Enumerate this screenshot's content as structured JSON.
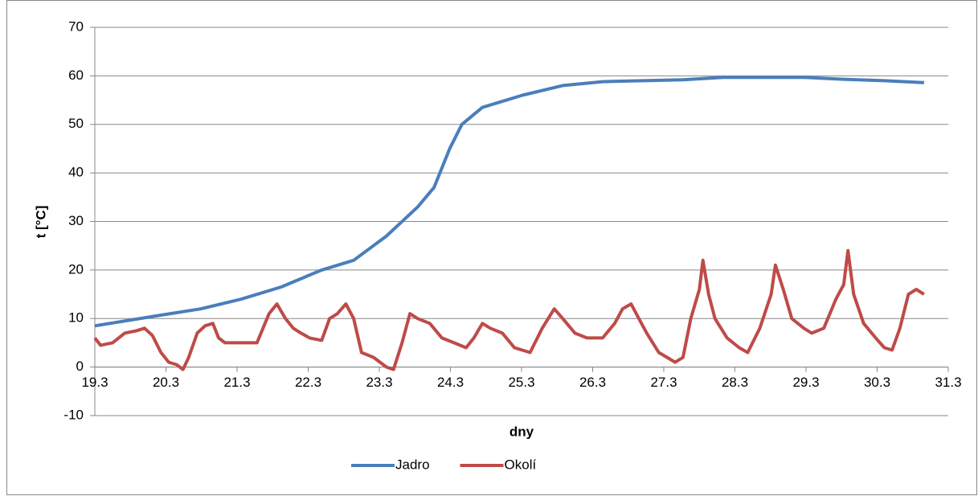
{
  "chart_data": {
    "type": "line",
    "x_label": "dny",
    "y_label": "t [°C]",
    "xlim": [
      19,
      31
    ],
    "xticks": [
      {
        "value": 19,
        "label": "19.3"
      },
      {
        "value": 20,
        "label": "20.3"
      },
      {
        "value": 21,
        "label": "21.3"
      },
      {
        "value": 22,
        "label": "22.3"
      },
      {
        "value": 23,
        "label": "23.3"
      },
      {
        "value": 24,
        "label": "24.3"
      },
      {
        "value": 25,
        "label": "25.3"
      },
      {
        "value": 26,
        "label": "26.3"
      },
      {
        "value": 27,
        "label": "27.3"
      },
      {
        "value": 28,
        "label": "28.3"
      },
      {
        "value": 29,
        "label": "29.3"
      },
      {
        "value": 30,
        "label": "30.3"
      },
      {
        "value": 31,
        "label": "31.3"
      }
    ],
    "ylim": [
      -10,
      70
    ],
    "yticks": [
      -10,
      0,
      10,
      20,
      30,
      40,
      50,
      60,
      70
    ],
    "grid": true,
    "legend": "bottom",
    "series": [
      {
        "name": "Jadro",
        "color": "#4a7ebb",
        "x": [
          19.0,
          19.93,
          20.49,
          21.06,
          21.62,
          22.19,
          22.64,
          23.1,
          23.54,
          23.77,
          23.99,
          24.16,
          24.45,
          25.01,
          25.58,
          26.14,
          26.71,
          27.27,
          27.84,
          28.97,
          29.53,
          30.1,
          30.66
        ],
        "values": [
          8.5,
          10.7,
          12,
          14,
          16.5,
          20,
          22,
          27,
          33,
          37,
          45,
          50,
          53.5,
          56,
          58,
          58.8,
          59,
          59.2,
          59.7,
          59.7,
          59.3,
          59,
          58.6
        ]
      },
      {
        "name": "Okolí",
        "color": "#be4b48",
        "x": [
          19.0,
          19.08,
          19.25,
          19.42,
          19.59,
          19.7,
          19.81,
          19.93,
          20.04,
          20.15,
          20.24,
          20.32,
          20.44,
          20.55,
          20.66,
          20.74,
          20.83,
          21.06,
          21.28,
          21.45,
          21.56,
          21.68,
          21.79,
          21.9,
          22.02,
          22.19,
          22.3,
          22.41,
          22.53,
          22.64,
          22.75,
          22.92,
          23.1,
          23.2,
          23.32,
          23.43,
          23.54,
          23.71,
          23.88,
          24.05,
          24.22,
          24.33,
          24.45,
          24.56,
          24.73,
          24.9,
          25.12,
          25.29,
          25.46,
          25.58,
          25.75,
          25.92,
          26.14,
          26.31,
          26.42,
          26.54,
          26.65,
          26.76,
          26.93,
          27.16,
          27.27,
          27.38,
          27.5,
          27.55,
          27.63,
          27.72,
          27.89,
          28.06,
          28.18,
          28.35,
          28.51,
          28.57,
          28.68,
          28.8,
          28.97,
          29.08,
          29.25,
          29.42,
          29.53,
          29.59,
          29.67,
          29.81,
          29.98,
          30.1,
          30.21,
          30.32,
          30.44,
          30.55,
          30.66
        ],
        "values": [
          6,
          4.5,
          5,
          7,
          7.5,
          8,
          6.5,
          3,
          1,
          0.5,
          -0.5,
          2,
          7,
          8.5,
          9,
          6,
          5,
          5,
          5,
          11,
          13,
          10,
          8,
          7,
          6,
          5.5,
          10,
          11,
          13,
          10,
          3,
          2,
          0,
          -0.5,
          5,
          11,
          10,
          9,
          6,
          5,
          4,
          6,
          9,
          8,
          7,
          4,
          3,
          8,
          12,
          10,
          7,
          6,
          6,
          9,
          12,
          13,
          10,
          7,
          3,
          1,
          2,
          10,
          16,
          22,
          15,
          10,
          6,
          4,
          3,
          8,
          15,
          21,
          16,
          10,
          8,
          7,
          8,
          14,
          17,
          24,
          15,
          9,
          6,
          4,
          3.5,
          8,
          15,
          16,
          15
        ]
      }
    ]
  }
}
